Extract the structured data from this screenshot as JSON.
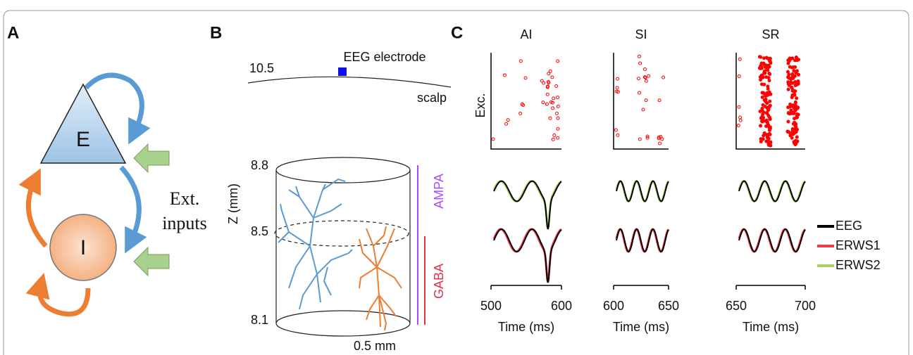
{
  "panels": {
    "a": {
      "label": "A",
      "nodes": [
        {
          "label": "E"
        },
        {
          "label": "I"
        }
      ],
      "inputs_label": [
        "Ext.",
        "inputs"
      ]
    },
    "b": {
      "label": "B",
      "scalp_height": "10.5",
      "electrode": "EEG electrode",
      "scalp": "scalp",
      "y_axis_label": "Z (mm)",
      "z_ticks": [
        "8.8",
        "8.5",
        "8.1"
      ],
      "receptors": [
        "AMPA",
        "GABA"
      ],
      "scale_bar": "0.5 mm"
    },
    "c": {
      "label": "C",
      "raster_label": "Exc.",
      "x_axis_label": "Time (ms)",
      "columns": [
        {
          "title": "AI",
          "ticks": [
            "500",
            "600"
          ]
        },
        {
          "title": "SI",
          "ticks": [
            "600",
            "650"
          ]
        },
        {
          "title": "SR",
          "ticks": [
            "650",
            "700"
          ]
        }
      ],
      "legend": [
        "EEG",
        "ERWS1",
        "ERWS2"
      ]
    }
  }
}
